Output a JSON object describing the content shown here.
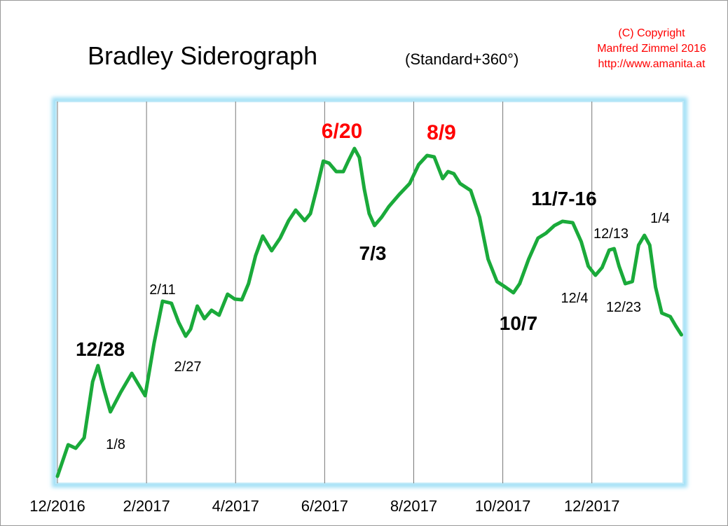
{
  "chart_data": {
    "type": "line",
    "title": "Bradley Siderograph",
    "subtitle": "(Standard+360°)",
    "credits": [
      "(C) Copyright",
      "Manfred Zimmel  2016",
      "http://www.amanita.at"
    ],
    "credit_color": "#ff0000",
    "color": "#1aaa3a",
    "grid": true,
    "xlim": [
      0,
      14.05
    ],
    "ylim": [
      0,
      100
    ],
    "xticks": [
      {
        "value": 0,
        "label": "12/2016"
      },
      {
        "value": 2,
        "label": "2/2017"
      },
      {
        "value": 4,
        "label": "4/2017"
      },
      {
        "value": 6,
        "label": "6/2017"
      },
      {
        "value": 8,
        "label": "8/2017"
      },
      {
        "value": 10,
        "label": "10/2017"
      },
      {
        "value": 12,
        "label": "12/2017"
      }
    ],
    "x": [
      0,
      0.24,
      0.41,
      0.6,
      0.79,
      0.91,
      1.04,
      1.19,
      1.42,
      1.67,
      1.81,
      1.97,
      2.17,
      2.36,
      2.56,
      2.72,
      2.88,
      2.99,
      3.14,
      3.3,
      3.46,
      3.63,
      3.82,
      3.98,
      4.14,
      4.29,
      4.45,
      4.61,
      4.81,
      5.0,
      5.19,
      5.35,
      5.55,
      5.68,
      5.82,
      5.97,
      6.1,
      6.26,
      6.42,
      6.53,
      6.67,
      6.78,
      6.89,
      7.0,
      7.12,
      7.28,
      7.44,
      7.67,
      7.91,
      8.11,
      8.3,
      8.46,
      8.65,
      8.77,
      8.9,
      9.04,
      9.28,
      9.48,
      9.67,
      9.87,
      10.06,
      10.24,
      10.38,
      10.58,
      10.79,
      10.97,
      11.16,
      11.34,
      11.57,
      11.76,
      11.92,
      12.08,
      12.23,
      12.39,
      12.5,
      12.61,
      12.75,
      12.91,
      13.05,
      13.18,
      13.3,
      13.43,
      13.57,
      13.76,
      13.88,
      14.01
    ],
    "values": [
      1.83,
      10.09,
      9.17,
      11.93,
      26.61,
      30.83,
      24.77,
      18.72,
      23.85,
      28.81,
      26.06,
      22.94,
      36.7,
      47.71,
      47.16,
      42.2,
      38.53,
      40.37,
      46.42,
      43.12,
      45.32,
      44.04,
      49.54,
      48.26,
      48.07,
      52.29,
      59.63,
      64.77,
      60.92,
      64.22,
      68.81,
      71.56,
      68.81,
      70.64,
      77.06,
      84.4,
      83.85,
      81.65,
      81.65,
      84.4,
      87.71,
      85.32,
      77.06,
      70.64,
      67.52,
      69.72,
      72.48,
      75.6,
      78.53,
      83.49,
      85.87,
      85.5,
      79.82,
      81.65,
      81.1,
      78.53,
      76.7,
      69.72,
      58.72,
      52.84,
      51.38,
      49.91,
      52.29,
      58.72,
      64.22,
      65.5,
      67.52,
      68.62,
      68.26,
      63.3,
      56.88,
      54.5,
      56.51,
      61.1,
      61.47,
      56.88,
      52.29,
      52.84,
      62.39,
      64.95,
      62.39,
      51.38,
      44.59,
      43.67,
      41.28,
      38.9
    ],
    "annotations": [
      {
        "text": "12/28",
        "color": "#000000"
      },
      {
        "text": "1/8",
        "color": "#000000"
      },
      {
        "text": "2/11",
        "color": "#000000"
      },
      {
        "text": "2/27",
        "color": "#000000"
      },
      {
        "text": "6/20",
        "color": "#ff0000"
      },
      {
        "text": "7/3",
        "color": "#000000"
      },
      {
        "text": "8/9",
        "color": "#ff0000"
      },
      {
        "text": "11/7-16",
        "color": "#000000"
      },
      {
        "text": "12/13",
        "color": "#000000"
      },
      {
        "text": "1/4",
        "color": "#000000"
      },
      {
        "text": "12/4",
        "color": "#000000"
      },
      {
        "text": "12/23",
        "color": "#000000"
      },
      {
        "text": "10/7",
        "color": "#000000"
      }
    ]
  }
}
